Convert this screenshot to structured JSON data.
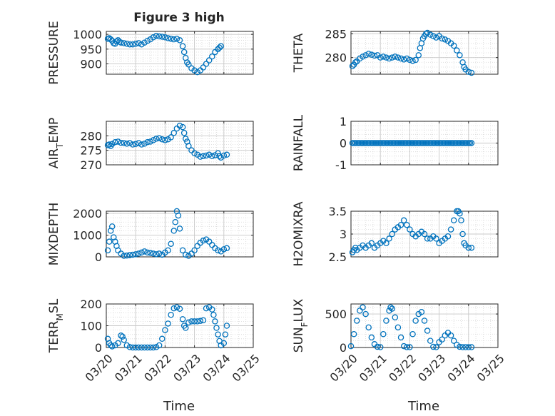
{
  "figure_title": "Figure 3 high",
  "x_axis": {
    "label": "Time",
    "tick_labels": [
      "03/20",
      "03/21",
      "03/22",
      "03/23",
      "03/24",
      "03/25"
    ]
  },
  "marker_color": "#0072BD",
  "chart_data": [
    {
      "type": "scatter",
      "ylabel": "PRESSURE",
      "ylabel_sub": null,
      "ylim": [
        865,
        1010
      ],
      "yticks": [
        900,
        950,
        1000
      ],
      "ytick_labels": [
        "900",
        "950",
        "1000"
      ],
      "xlim": [
        0,
        5
      ],
      "grid": true,
      "points": [
        [
          0.05,
          985
        ],
        [
          0.1,
          987
        ],
        [
          0.15,
          983
        ],
        [
          0.2,
          978
        ],
        [
          0.25,
          970
        ],
        [
          0.3,
          968
        ],
        [
          0.35,
          976
        ],
        [
          0.4,
          980
        ],
        [
          0.45,
          975
        ],
        [
          0.5,
          972
        ],
        [
          0.6,
          970
        ],
        [
          0.7,
          968
        ],
        [
          0.8,
          966
        ],
        [
          0.9,
          966
        ],
        [
          1.0,
          968
        ],
        [
          1.1,
          970
        ],
        [
          1.2,
          966
        ],
        [
          1.3,
          972
        ],
        [
          1.4,
          978
        ],
        [
          1.5,
          983
        ],
        [
          1.6,
          990
        ],
        [
          1.7,
          995
        ],
        [
          1.8,
          993
        ],
        [
          1.9,
          992
        ],
        [
          2.0,
          990
        ],
        [
          2.1,
          987
        ],
        [
          2.2,
          985
        ],
        [
          2.3,
          983
        ],
        [
          2.4,
          985
        ],
        [
          2.5,
          980
        ],
        [
          2.6,
          960
        ],
        [
          2.65,
          940
        ],
        [
          2.7,
          920
        ],
        [
          2.75,
          905
        ],
        [
          2.8,
          898
        ],
        [
          2.9,
          885
        ],
        [
          3.0,
          878
        ],
        [
          3.1,
          872
        ],
        [
          3.2,
          878
        ],
        [
          3.3,
          888
        ],
        [
          3.4,
          900
        ],
        [
          3.5,
          912
        ],
        [
          3.6,
          925
        ],
        [
          3.7,
          940
        ],
        [
          3.8,
          950
        ],
        [
          3.85,
          955
        ],
        [
          3.9,
          960
        ]
      ]
    },
    {
      "type": "scatter",
      "ylabel": "THETA",
      "ylabel_sub": null,
      "ylim": [
        276.5,
        285.5
      ],
      "yticks": [
        280,
        285
      ],
      "ytick_labels": [
        "280",
        "285"
      ],
      "xlim": [
        0,
        5
      ],
      "grid": true,
      "points": [
        [
          0.05,
          278.2
        ],
        [
          0.1,
          278.5
        ],
        [
          0.15,
          279
        ],
        [
          0.2,
          279.2
        ],
        [
          0.3,
          279.8
        ],
        [
          0.4,
          280.2
        ],
        [
          0.5,
          280.5
        ],
        [
          0.6,
          280.8
        ],
        [
          0.7,
          280.6
        ],
        [
          0.8,
          280.4
        ],
        [
          0.9,
          280.5
        ],
        [
          1.0,
          280
        ],
        [
          1.1,
          280.2
        ],
        [
          1.2,
          280
        ],
        [
          1.3,
          279.8
        ],
        [
          1.4,
          280
        ],
        [
          1.5,
          280.2
        ],
        [
          1.6,
          280
        ],
        [
          1.7,
          279.8
        ],
        [
          1.8,
          279.6
        ],
        [
          1.9,
          279.8
        ],
        [
          2.0,
          279.5
        ],
        [
          2.1,
          279.3
        ],
        [
          2.2,
          279.5
        ],
        [
          2.3,
          280.5
        ],
        [
          2.35,
          282
        ],
        [
          2.4,
          283
        ],
        [
          2.45,
          284
        ],
        [
          2.5,
          284.5
        ],
        [
          2.55,
          285
        ],
        [
          2.6,
          285.2
        ],
        [
          2.7,
          284.8
        ],
        [
          2.8,
          284.5
        ],
        [
          2.9,
          284.2
        ],
        [
          3.0,
          284.5
        ],
        [
          3.1,
          284
        ],
        [
          3.2,
          283.8
        ],
        [
          3.3,
          283.5
        ],
        [
          3.4,
          283
        ],
        [
          3.5,
          282.5
        ],
        [
          3.6,
          281.5
        ],
        [
          3.7,
          280.5
        ],
        [
          3.8,
          279
        ],
        [
          3.85,
          278
        ],
        [
          3.9,
          277.5
        ],
        [
          4.0,
          277
        ],
        [
          4.1,
          276.8
        ]
      ]
    },
    {
      "type": "scatter",
      "ylabel": "AIR",
      "ylabel_sub": "T",
      "ylabel_rest": "EMP",
      "ylim": [
        270,
        285
      ],
      "yticks": [
        270,
        275,
        280
      ],
      "ytick_labels": [
        "270",
        "275",
        "280"
      ],
      "xlim": [
        0,
        5
      ],
      "grid": true,
      "points": [
        [
          0.05,
          276.8
        ],
        [
          0.1,
          277
        ],
        [
          0.15,
          276.5
        ],
        [
          0.2,
          277.2
        ],
        [
          0.3,
          277.8
        ],
        [
          0.4,
          278
        ],
        [
          0.5,
          277.6
        ],
        [
          0.6,
          277.5
        ],
        [
          0.7,
          277.3
        ],
        [
          0.8,
          277.5
        ],
        [
          0.9,
          277
        ],
        [
          1.0,
          277.2
        ],
        [
          1.1,
          277.5
        ],
        [
          1.2,
          277
        ],
        [
          1.3,
          277.3
        ],
        [
          1.4,
          277.8
        ],
        [
          1.5,
          278
        ],
        [
          1.6,
          278.5
        ],
        [
          1.7,
          279
        ],
        [
          1.8,
          279.2
        ],
        [
          1.9,
          278.8
        ],
        [
          2.0,
          278.5
        ],
        [
          2.1,
          278.8
        ],
        [
          2.2,
          279.5
        ],
        [
          2.3,
          281
        ],
        [
          2.4,
          282.5
        ],
        [
          2.5,
          283.5
        ],
        [
          2.6,
          283
        ],
        [
          2.65,
          281
        ],
        [
          2.7,
          279
        ],
        [
          2.75,
          278
        ],
        [
          2.8,
          276.5
        ],
        [
          2.9,
          275
        ],
        [
          3.0,
          274
        ],
        [
          3.1,
          273.5
        ],
        [
          3.2,
          272.8
        ],
        [
          3.3,
          273
        ],
        [
          3.4,
          273.2
        ],
        [
          3.5,
          273.5
        ],
        [
          3.6,
          273
        ],
        [
          3.7,
          273.3
        ],
        [
          3.8,
          274
        ],
        [
          3.85,
          273
        ],
        [
          3.9,
          272.5
        ],
        [
          4.0,
          273.2
        ],
        [
          4.1,
          273.5
        ]
      ]
    },
    {
      "type": "scatter",
      "ylabel": "RAINFALL",
      "ylabel_sub": null,
      "ylim": [
        -1,
        1
      ],
      "yticks": [
        -1,
        0,
        1
      ],
      "ytick_labels": [
        "-1",
        "0",
        "1"
      ],
      "xlim": [
        0,
        5
      ],
      "grid": true,
      "points_constant": {
        "y": 0,
        "x_start": 0.05,
        "x_end": 4.1,
        "step": 0.05
      }
    },
    {
      "type": "scatter",
      "ylabel": "MIXDEPTH",
      "ylabel_sub": null,
      "ylim": [
        0,
        2100
      ],
      "yticks": [
        0,
        1000,
        2000
      ],
      "ytick_labels": [
        "0",
        "1000",
        "2000"
      ],
      "xlim": [
        0,
        5
      ],
      "grid": true,
      "points": [
        [
          0.05,
          300
        ],
        [
          0.1,
          700
        ],
        [
          0.15,
          1200
        ],
        [
          0.2,
          1400
        ],
        [
          0.25,
          900
        ],
        [
          0.3,
          700
        ],
        [
          0.35,
          500
        ],
        [
          0.4,
          300
        ],
        [
          0.5,
          150
        ],
        [
          0.6,
          50
        ],
        [
          0.7,
          60
        ],
        [
          0.8,
          80
        ],
        [
          0.9,
          100
        ],
        [
          1.0,
          120
        ],
        [
          1.1,
          150
        ],
        [
          1.2,
          200
        ],
        [
          1.3,
          250
        ],
        [
          1.4,
          200
        ],
        [
          1.5,
          180
        ],
        [
          1.6,
          150
        ],
        [
          1.7,
          120
        ],
        [
          1.8,
          150
        ],
        [
          1.9,
          100
        ],
        [
          2.0,
          200
        ],
        [
          2.1,
          300
        ],
        [
          2.2,
          600
        ],
        [
          2.3,
          1200
        ],
        [
          2.35,
          1600
        ],
        [
          2.4,
          2100
        ],
        [
          2.45,
          1900
        ],
        [
          2.5,
          1300
        ],
        [
          2.6,
          300
        ],
        [
          2.7,
          100
        ],
        [
          2.8,
          50
        ],
        [
          2.9,
          150
        ],
        [
          3.0,
          300
        ],
        [
          3.1,
          500
        ],
        [
          3.2,
          650
        ],
        [
          3.3,
          750
        ],
        [
          3.4,
          800
        ],
        [
          3.5,
          700
        ],
        [
          3.6,
          550
        ],
        [
          3.7,
          400
        ],
        [
          3.8,
          300
        ],
        [
          3.9,
          250
        ],
        [
          4.0,
          350
        ],
        [
          4.1,
          400
        ]
      ]
    },
    {
      "type": "scatter",
      "ylabel": "H2OMIXRA",
      "ylabel_sub": null,
      "ylim": [
        2.5,
        3.5
      ],
      "yticks": [
        2.5,
        3,
        3.5
      ],
      "ytick_labels": [
        "2.5",
        "3",
        "3.5"
      ],
      "xlim": [
        0,
        5
      ],
      "grid": true,
      "points": [
        [
          0.05,
          2.6
        ],
        [
          0.1,
          2.65
        ],
        [
          0.15,
          2.7
        ],
        [
          0.2,
          2.65
        ],
        [
          0.3,
          2.7
        ],
        [
          0.4,
          2.75
        ],
        [
          0.5,
          2.7
        ],
        [
          0.6,
          2.75
        ],
        [
          0.7,
          2.8
        ],
        [
          0.8,
          2.7
        ],
        [
          0.9,
          2.75
        ],
        [
          1.0,
          2.8
        ],
        [
          1.1,
          2.85
        ],
        [
          1.2,
          2.8
        ],
        [
          1.3,
          2.9
        ],
        [
          1.4,
          3.0
        ],
        [
          1.5,
          3.1
        ],
        [
          1.6,
          3.15
        ],
        [
          1.7,
          3.2
        ],
        [
          1.8,
          3.3
        ],
        [
          1.9,
          3.2
        ],
        [
          2.0,
          3.1
        ],
        [
          2.1,
          3.0
        ],
        [
          2.2,
          2.95
        ],
        [
          2.3,
          3.0
        ],
        [
          2.4,
          3.05
        ],
        [
          2.5,
          3.0
        ],
        [
          2.6,
          2.9
        ],
        [
          2.7,
          2.9
        ],
        [
          2.8,
          2.95
        ],
        [
          2.9,
          2.9
        ],
        [
          3.0,
          2.8
        ],
        [
          3.1,
          2.85
        ],
        [
          3.2,
          2.9
        ],
        [
          3.3,
          2.95
        ],
        [
          3.4,
          3.1
        ],
        [
          3.5,
          3.3
        ],
        [
          3.6,
          3.5
        ],
        [
          3.65,
          3.5
        ],
        [
          3.7,
          3.45
        ],
        [
          3.75,
          3.3
        ],
        [
          3.8,
          3.0
        ],
        [
          3.85,
          2.8
        ],
        [
          3.9,
          2.75
        ],
        [
          4.0,
          2.7
        ],
        [
          4.1,
          2.7
        ]
      ]
    },
    {
      "type": "scatter",
      "ylabel": "TERR",
      "ylabel_sub": "M",
      "ylabel_rest": "SL",
      "ylim": [
        0,
        200
      ],
      "yticks": [
        0,
        100,
        200
      ],
      "ytick_labels": [
        "0",
        "100",
        "200"
      ],
      "xlim": [
        0,
        5
      ],
      "grid": true,
      "points": [
        [
          0.05,
          40
        ],
        [
          0.1,
          20
        ],
        [
          0.15,
          10
        ],
        [
          0.2,
          5
        ],
        [
          0.3,
          10
        ],
        [
          0.4,
          20
        ],
        [
          0.5,
          55
        ],
        [
          0.55,
          50
        ],
        [
          0.6,
          35
        ],
        [
          0.7,
          10
        ],
        [
          0.8,
          2
        ],
        [
          0.9,
          0
        ],
        [
          1.0,
          0
        ],
        [
          1.1,
          0
        ],
        [
          1.2,
          0
        ],
        [
          1.3,
          0
        ],
        [
          1.4,
          0
        ],
        [
          1.5,
          0
        ],
        [
          1.6,
          0
        ],
        [
          1.7,
          2
        ],
        [
          1.8,
          10
        ],
        [
          1.9,
          40
        ],
        [
          2.0,
          80
        ],
        [
          2.1,
          110
        ],
        [
          2.2,
          150
        ],
        [
          2.3,
          180
        ],
        [
          2.4,
          185
        ],
        [
          2.5,
          178
        ],
        [
          2.6,
          130
        ],
        [
          2.65,
          100
        ],
        [
          2.7,
          90
        ],
        [
          2.8,
          115
        ],
        [
          2.9,
          120
        ],
        [
          3.0,
          120
        ],
        [
          3.1,
          120
        ],
        [
          3.2,
          122
        ],
        [
          3.3,
          125
        ],
        [
          3.4,
          180
        ],
        [
          3.5,
          185
        ],
        [
          3.6,
          175
        ],
        [
          3.65,
          150
        ],
        [
          3.7,
          120
        ],
        [
          3.75,
          90
        ],
        [
          3.8,
          60
        ],
        [
          3.85,
          30
        ],
        [
          3.9,
          10
        ],
        [
          4.0,
          20
        ],
        [
          4.05,
          60
        ],
        [
          4.1,
          100
        ]
      ]
    },
    {
      "type": "scatter",
      "ylabel": "SUN",
      "ylabel_sub": "F",
      "ylabel_rest": "LUX",
      "ylim": [
        0,
        650
      ],
      "yticks": [
        0,
        500
      ],
      "ytick_labels": [
        "0",
        "500"
      ],
      "xlim": [
        0,
        5
      ],
      "grid": true,
      "points": [
        [
          0.0,
          20
        ],
        [
          0.1,
          200
        ],
        [
          0.2,
          400
        ],
        [
          0.3,
          550
        ],
        [
          0.4,
          600
        ],
        [
          0.5,
          500
        ],
        [
          0.6,
          300
        ],
        [
          0.7,
          150
        ],
        [
          0.8,
          50
        ],
        [
          0.9,
          10
        ],
        [
          1.0,
          5
        ],
        [
          1.1,
          200
        ],
        [
          1.2,
          400
        ],
        [
          1.3,
          550
        ],
        [
          1.35,
          600
        ],
        [
          1.4,
          580
        ],
        [
          1.5,
          450
        ],
        [
          1.6,
          300
        ],
        [
          1.7,
          150
        ],
        [
          1.8,
          20
        ],
        [
          1.9,
          5
        ],
        [
          2.0,
          5
        ],
        [
          2.1,
          200
        ],
        [
          2.2,
          400
        ],
        [
          2.3,
          500
        ],
        [
          2.4,
          530
        ],
        [
          2.5,
          400
        ],
        [
          2.6,
          250
        ],
        [
          2.7,
          100
        ],
        [
          2.8,
          10
        ],
        [
          2.9,
          5
        ],
        [
          3.0,
          80
        ],
        [
          3.1,
          120
        ],
        [
          3.2,
          180
        ],
        [
          3.3,
          220
        ],
        [
          3.4,
          180
        ],
        [
          3.5,
          100
        ],
        [
          3.6,
          40
        ],
        [
          3.7,
          10
        ],
        [
          3.8,
          5
        ],
        [
          3.9,
          5
        ],
        [
          4.0,
          5
        ],
        [
          4.1,
          5
        ]
      ]
    }
  ]
}
